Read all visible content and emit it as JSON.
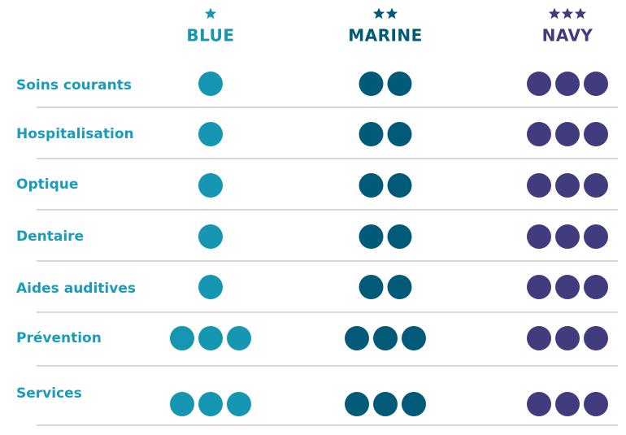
{
  "plans": [
    {
      "name": "BLUE",
      "stars": 1,
      "color": "#1596b3"
    },
    {
      "name": "MARINE",
      "stars": 2,
      "color": "#005a78"
    },
    {
      "name": "NAVY",
      "stars": 3,
      "color": "#413c7e"
    }
  ],
  "rows": [
    {
      "label": "Soins courants",
      "levels": [
        1,
        2,
        3
      ]
    },
    {
      "label": "Hospitalisation",
      "levels": [
        1,
        2,
        3
      ]
    },
    {
      "label": "Optique",
      "levels": [
        1,
        2,
        3
      ]
    },
    {
      "label": "Dentaire",
      "levels": [
        1,
        2,
        3
      ]
    },
    {
      "label": "Aides auditives",
      "levels": [
        1,
        2,
        3
      ]
    },
    {
      "label": "Prévention",
      "levels": [
        3,
        3,
        3
      ]
    },
    {
      "label": "Services",
      "levels": [
        3,
        3,
        3
      ]
    }
  ]
}
